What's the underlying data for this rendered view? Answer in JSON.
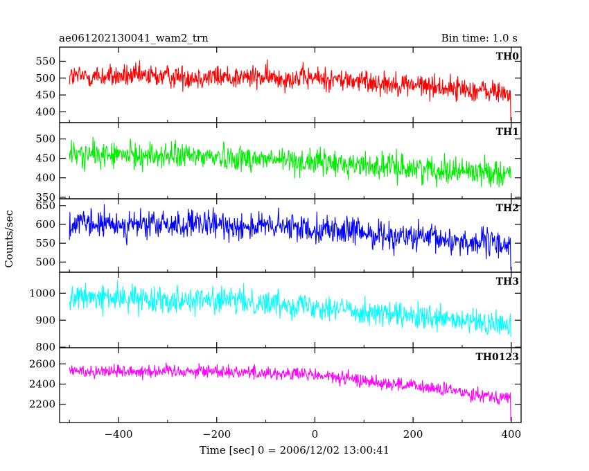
{
  "header": {
    "left": "ae061202130041_wam2_trn",
    "right": "Bin time: 1.0 s"
  },
  "chart_data": {
    "type": "line",
    "title": "ae061202130041_wam2_trn",
    "subtitle": "Bin time: 1.0 s",
    "xlabel": "Time [sec] 0 = 2006/12/02 13:00:41",
    "ylabel": "Counts/sec",
    "xlim": [
      -520,
      420
    ],
    "x_ticks": [
      -400,
      -200,
      0,
      200,
      400
    ],
    "x_tick_labels": [
      "−400",
      "−200",
      "0",
      "200",
      "400"
    ],
    "x_range": [
      -500,
      400
    ],
    "bin_time": 1.0,
    "grid": false,
    "panels": [
      {
        "name": "TH0",
        "color": "#ff0000",
        "ylim": [
          368,
          592
        ],
        "yticks": [
          400,
          450,
          500,
          550
        ],
        "trend": [
          [
            -500,
            505
          ],
          [
            -300,
            505
          ],
          [
            0,
            500
          ],
          [
            200,
            480
          ],
          [
            400,
            455
          ]
        ],
        "noise_amplitude": 28,
        "end_dip": 375
      },
      {
        "name": "TH1",
        "color": "#00ee00",
        "ylim": [
          346,
          542
        ],
        "yticks": [
          350,
          400,
          450,
          500
        ],
        "trend": [
          [
            -500,
            460
          ],
          [
            -200,
            455
          ],
          [
            0,
            440
          ],
          [
            200,
            425
          ],
          [
            400,
            412
          ]
        ],
        "noise_amplitude": 27,
        "end_dip": 400
      },
      {
        "name": "TH2",
        "color": "#0000ff",
        "ylim": [
          473,
          668
        ],
        "yticks": [
          500,
          550,
          600,
          650
        ],
        "trend": [
          [
            -500,
            600
          ],
          [
            -200,
            598
          ],
          [
            0,
            590
          ],
          [
            200,
            565
          ],
          [
            400,
            545
          ]
        ],
        "noise_amplitude": 30,
        "end_dip": 480
      },
      {
        "name": "TH3",
        "color": "#00ffff",
        "ylim": [
          798,
          1078
        ],
        "yticks": [
          800,
          900,
          1000
        ],
        "trend": [
          [
            -500,
            985
          ],
          [
            -200,
            975
          ],
          [
            0,
            955
          ],
          [
            200,
            910
          ],
          [
            400,
            880
          ]
        ],
        "noise_amplitude": 38,
        "end_dip": 840
      },
      {
        "name": "TH0123",
        "color": "#ff00ff",
        "ylim": [
          2020,
          2760
        ],
        "yticks": [
          2200,
          2400,
          2600
        ],
        "trend": [
          [
            -500,
            2530
          ],
          [
            -200,
            2530
          ],
          [
            0,
            2490
          ],
          [
            200,
            2380
          ],
          [
            400,
            2260
          ]
        ],
        "noise_amplitude": 55,
        "end_dip": 2040
      }
    ]
  }
}
